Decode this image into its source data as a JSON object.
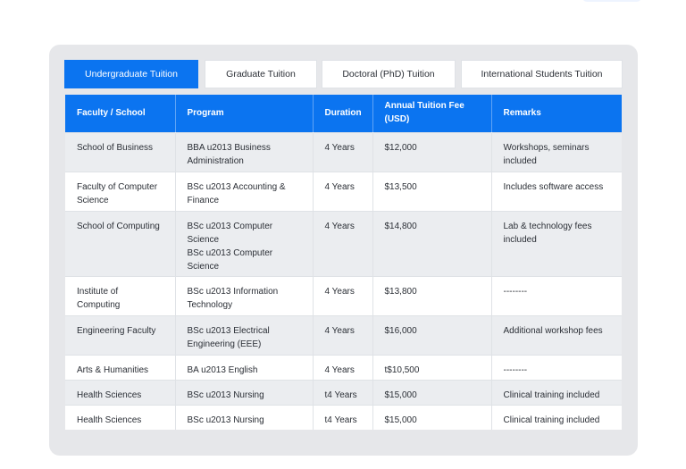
{
  "tabs": [
    {
      "label": "Undergraduate Tuition",
      "active": true
    },
    {
      "label": "Graduate Tuition",
      "active": false
    },
    {
      "label": "Doctoral (PhD) Tuition",
      "active": false
    },
    {
      "label": "International Students Tuition",
      "active": false
    }
  ],
  "table": {
    "headers": [
      "Faculty / School",
      "Program",
      "Duration",
      "Annual Tuition Fee (USD)",
      "Remarks"
    ],
    "rows": [
      {
        "faculty": "School of Business",
        "program": [
          "BBA u2013 Business Administration"
        ],
        "duration": "4 Years",
        "fee": "$12,000",
        "remarks": "Workshops, seminars included"
      },
      {
        "faculty": "Faculty of Computer Science",
        "program": [
          "BSc u2013 Accounting & Finance"
        ],
        "duration": "4 Years",
        "fee": "$13,500",
        "remarks": "Includes software access"
      },
      {
        "faculty": "School of Computing",
        "program": [
          "BSc u2013 Computer Science",
          "BSc u2013 Computer Science"
        ],
        "duration": "4 Years",
        "fee": "$14,800",
        "remarks": "Lab & technology fees included"
      },
      {
        "faculty": "Institute of Computing",
        "program": [
          "BSc u2013 Information Technology"
        ],
        "duration": "4 Years",
        "fee": "$13,800",
        "remarks": "--------"
      },
      {
        "faculty": "Engineering Faculty",
        "program": [
          "BSc u2013 Electrical Engineering (EEE)"
        ],
        "duration": "4 Years",
        "fee": "$16,000",
        "remarks": "Additional workshop fees"
      },
      {
        "faculty": "Arts & Humanities",
        "program": [
          "BA u2013 English"
        ],
        "duration": "4 Years",
        "fee": "t$10,500",
        "remarks": "--------"
      },
      {
        "faculty": "Health Sciences",
        "program": [
          "BSc u2013 Nursing"
        ],
        "duration": "t4 Years",
        "fee": "$15,000",
        "remarks": "Clinical training included"
      },
      {
        "faculty": "Health Sciences",
        "program": [
          "BSc u2013 Nursing"
        ],
        "duration": "t4 Years",
        "fee": "$15,000",
        "remarks": "Clinical training included"
      }
    ]
  },
  "colors": {
    "accent": "#0b74f0",
    "panel": "#e6e7ea",
    "row_alt": "#ebedf0"
  }
}
